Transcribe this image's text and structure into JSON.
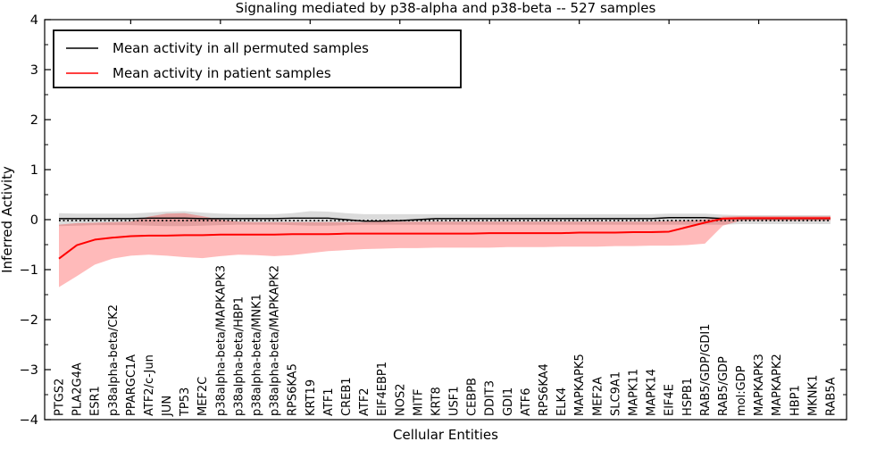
{
  "title": "Signaling mediated by p38-alpha and p38-beta -- 527 samples",
  "legend": {
    "items": [
      {
        "label": "Mean activity in all permuted samples",
        "color": "#000000"
      },
      {
        "label": "Mean activity in patient samples",
        "color": "#ff0000"
      }
    ]
  },
  "chart_data": {
    "type": "line",
    "title": "Signaling mediated by p38-alpha and p38-beta -- 527 samples",
    "xlabel": "Cellular Entities",
    "ylabel": "Inferred Activity",
    "ylim": [
      -4,
      4
    ],
    "yticks": [
      4,
      3,
      2,
      1,
      0,
      -1,
      -2,
      -3,
      -4
    ],
    "ytick_labels": [
      "4",
      "3",
      "2",
      "1",
      "0",
      "−1",
      "−2",
      "−3",
      "−4"
    ],
    "grid": false,
    "legend_position": "upper left",
    "zero_line": 0,
    "categories": [
      "PTGS2",
      "PLA2G4A",
      "ESR1",
      "p38alpha-beta/CK2",
      "PPARGC1A",
      "ATF2/c-Jun",
      "JUN",
      "TP53",
      "MEF2C",
      "p38alpha-beta/MAPKAPK3",
      "p38alpha-beta/HBP1",
      "p38alpha-beta/MNK1",
      "p38alpha-beta/MAPKAPK2",
      "RPS6KA5",
      "KRT19",
      "ATF1",
      "CREB1",
      "ATF2",
      "EIF4EBP1",
      "NOS2",
      "MITF",
      "KRT8",
      "USF1",
      "CEBPB",
      "DDIT3",
      "GDI1",
      "ATF6",
      "RPS6KA4",
      "ELK4",
      "MAPKAPK5",
      "MEF2A",
      "SLC9A1",
      "MAPK11",
      "MAPK14",
      "EIF4E",
      "HSPB1",
      "RAB5/GDP/GDI1",
      "RAB5/GDP",
      "mol:GDP",
      "MAPKAPK3",
      "MAPKAPK2",
      "HBP1",
      "MKNK1",
      "RAB5A"
    ],
    "series": [
      {
        "name": "Mean activity in all permuted samples",
        "color": "#000000",
        "values": [
          0.02,
          0.02,
          0.02,
          0.02,
          0.02,
          0.03,
          0.03,
          0.03,
          0.02,
          0.02,
          0.02,
          0.02,
          0.02,
          0.03,
          0.03,
          0.03,
          0.0,
          -0.03,
          -0.03,
          -0.02,
          0.0,
          0.02,
          0.02,
          0.02,
          0.02,
          0.02,
          0.02,
          0.02,
          0.02,
          0.02,
          0.02,
          0.02,
          0.02,
          0.02,
          0.04,
          0.04,
          0.04,
          0.02,
          0.02,
          0.02,
          0.02,
          0.02,
          0.02,
          0.02
        ]
      },
      {
        "name": "Mean activity in patient samples",
        "color": "#ff0000",
        "values": [
          -0.78,
          -0.51,
          -0.4,
          -0.36,
          -0.33,
          -0.32,
          -0.32,
          -0.31,
          -0.31,
          -0.3,
          -0.3,
          -0.3,
          -0.3,
          -0.29,
          -0.29,
          -0.29,
          -0.28,
          -0.28,
          -0.28,
          -0.28,
          -0.28,
          -0.28,
          -0.28,
          -0.28,
          -0.27,
          -0.27,
          -0.27,
          -0.27,
          -0.27,
          -0.26,
          -0.26,
          -0.26,
          -0.25,
          -0.25,
          -0.24,
          -0.15,
          -0.06,
          0.02,
          0.03,
          0.03,
          0.03,
          0.03,
          0.03,
          0.03
        ]
      }
    ],
    "bands": [
      {
        "name": "permuted samples range",
        "color": "rgba(0,0,0,0.14)",
        "upper": [
          0.13,
          0.12,
          0.12,
          0.12,
          0.12,
          0.14,
          0.16,
          0.17,
          0.14,
          0.12,
          0.11,
          0.11,
          0.11,
          0.13,
          0.17,
          0.16,
          0.13,
          0.11,
          0.11,
          0.11,
          0.11,
          0.11,
          0.11,
          0.11,
          0.11,
          0.11,
          0.11,
          0.11,
          0.11,
          0.11,
          0.11,
          0.11,
          0.11,
          0.11,
          0.12,
          0.12,
          0.12,
          0.1,
          0.09,
          0.09,
          0.09,
          0.09,
          0.09,
          0.09
        ],
        "lower": [
          -0.13,
          -0.12,
          -0.11,
          -0.11,
          -0.11,
          -0.12,
          -0.13,
          -0.13,
          -0.12,
          -0.11,
          -0.1,
          -0.1,
          -0.1,
          -0.11,
          -0.12,
          -0.12,
          -0.11,
          -0.1,
          -0.1,
          -0.1,
          -0.1,
          -0.1,
          -0.1,
          -0.1,
          -0.1,
          -0.1,
          -0.1,
          -0.1,
          -0.1,
          -0.1,
          -0.1,
          -0.1,
          -0.1,
          -0.1,
          -0.1,
          -0.1,
          -0.1,
          -0.1,
          -0.09,
          -0.09,
          -0.09,
          -0.09,
          -0.09,
          -0.09
        ]
      },
      {
        "name": "patient samples range",
        "color": "rgba(255,0,0,0.27)",
        "upper": [
          -0.1,
          -0.07,
          -0.06,
          -0.05,
          -0.04,
          0.06,
          0.12,
          0.13,
          0.07,
          0.0,
          -0.04,
          -0.05,
          -0.05,
          -0.05,
          -0.05,
          -0.05,
          -0.05,
          -0.05,
          -0.04,
          -0.04,
          -0.04,
          -0.04,
          -0.04,
          -0.04,
          -0.04,
          -0.04,
          -0.04,
          -0.04,
          -0.04,
          -0.04,
          -0.04,
          -0.04,
          -0.04,
          -0.04,
          -0.03,
          -0.02,
          0.0,
          0.06,
          0.07,
          0.07,
          0.07,
          0.07,
          0.07,
          0.07
        ],
        "lower": [
          -1.35,
          -1.13,
          -0.9,
          -0.78,
          -0.72,
          -0.7,
          -0.72,
          -0.75,
          -0.77,
          -0.73,
          -0.7,
          -0.71,
          -0.73,
          -0.71,
          -0.67,
          -0.63,
          -0.61,
          -0.59,
          -0.58,
          -0.57,
          -0.57,
          -0.56,
          -0.56,
          -0.56,
          -0.56,
          -0.55,
          -0.55,
          -0.55,
          -0.54,
          -0.54,
          -0.54,
          -0.53,
          -0.53,
          -0.52,
          -0.52,
          -0.51,
          -0.48,
          -0.12,
          -0.02,
          -0.02,
          -0.02,
          -0.02,
          -0.02,
          -0.02
        ]
      }
    ]
  }
}
